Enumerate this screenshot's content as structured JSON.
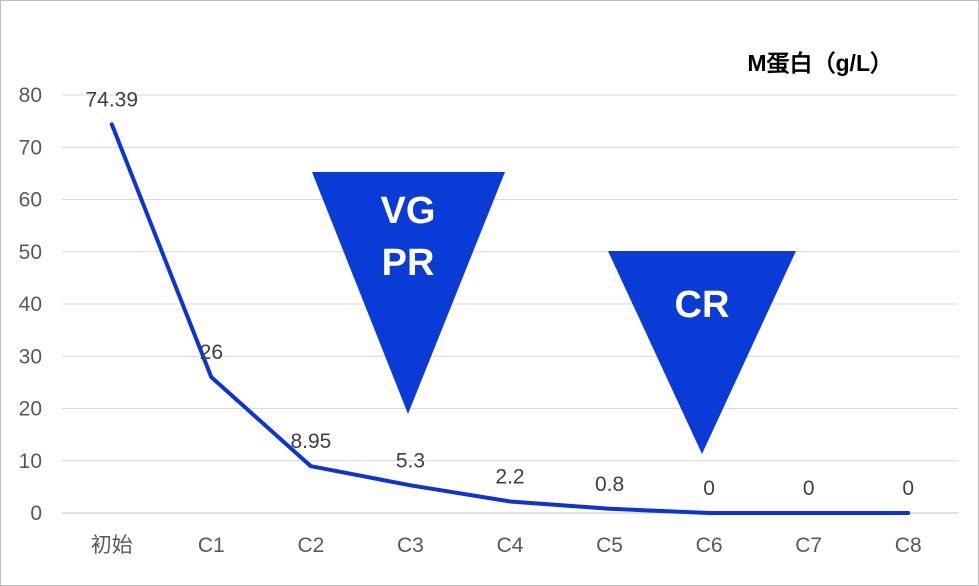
{
  "chart_data": {
    "type": "line",
    "title": "M蛋白（g/L）",
    "categories": [
      "初始",
      "C1",
      "C2",
      "C3",
      "C4",
      "C5",
      "C6",
      "C7",
      "C8"
    ],
    "series": [
      {
        "values": [
          74.39,
          26,
          8.95,
          5.3,
          2.2,
          0.8,
          0,
          0,
          0
        ]
      }
    ],
    "data_labels": [
      "74.39",
      "26",
      "8.95",
      "5.3",
      "2.2",
      "0.8",
      "0",
      "0",
      "0"
    ],
    "y_ticks": [
      "0",
      "10",
      "20",
      "30",
      "40",
      "50",
      "60",
      "70",
      "80"
    ],
    "ylim": [
      0,
      80
    ],
    "grid": true,
    "legend": "none",
    "line_color": "#0b33d6",
    "annotations": [
      {
        "lines": [
          "VG",
          "PR"
        ],
        "color": "#0b3bd6",
        "shape": "inverted-triangle"
      },
      {
        "lines": [
          "CR"
        ],
        "color": "#0b3bd6",
        "shape": "inverted-triangle"
      }
    ]
  }
}
